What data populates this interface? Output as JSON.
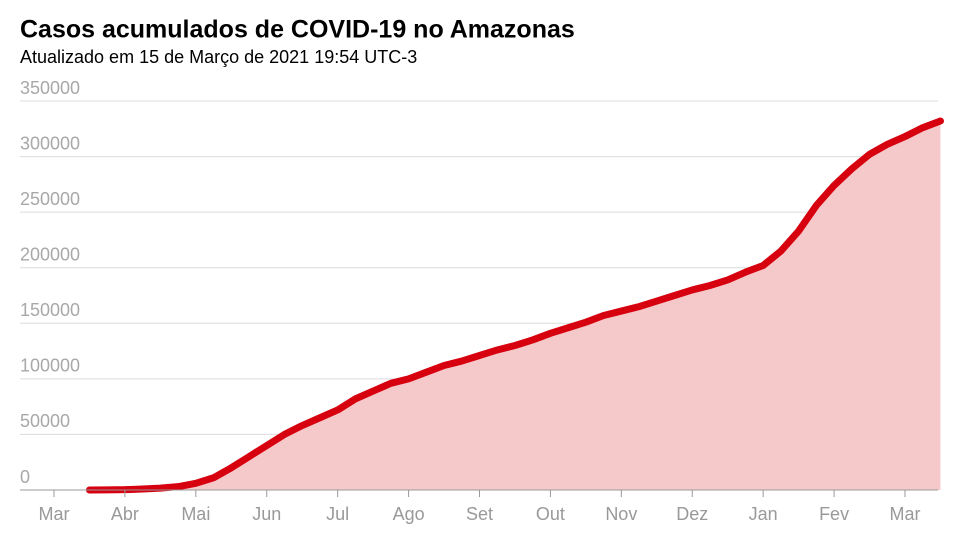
{
  "chart_data": {
    "type": "area",
    "title": "Casos acumulados de COVID-19 no Amazonas",
    "subtitle": "Atualizado em 15 de Março de 2021 19:54 UTC-3",
    "categories": [
      "Mar",
      null,
      null,
      null,
      "Abr",
      null,
      null,
      null,
      "Mai",
      null,
      null,
      null,
      "Jun",
      null,
      null,
      null,
      "Jul",
      null,
      null,
      null,
      "Ago",
      null,
      null,
      null,
      "Set",
      null,
      null,
      null,
      "Out",
      null,
      null,
      null,
      "Nov",
      null,
      null,
      null,
      "Dez",
      null,
      null,
      null,
      "Jan",
      null,
      null,
      null,
      "Fev",
      null,
      null,
      null,
      "Mar",
      null,
      null
    ],
    "values": [
      null,
      null,
      10,
      100,
      300,
      900,
      1700,
      3000,
      6000,
      11000,
      20000,
      30000,
      40000,
      50000,
      58000,
      65000,
      72000,
      82000,
      89000,
      96000,
      100000,
      106000,
      112000,
      116000,
      121000,
      126000,
      130000,
      135000,
      141000,
      146000,
      151000,
      157000,
      161000,
      165000,
      170000,
      175000,
      180000,
      184000,
      189000,
      196000,
      202000,
      215000,
      233000,
      256000,
      274000,
      289000,
      302000,
      311000,
      318000,
      326000,
      332000
    ],
    "color": "#d7000f",
    "fill_color": "#f5c8ca",
    "ylim": [
      0,
      350000
    ],
    "yticks": [
      0,
      50000,
      100000,
      150000,
      200000,
      250000,
      300000,
      350000
    ],
    "grid": true
  }
}
